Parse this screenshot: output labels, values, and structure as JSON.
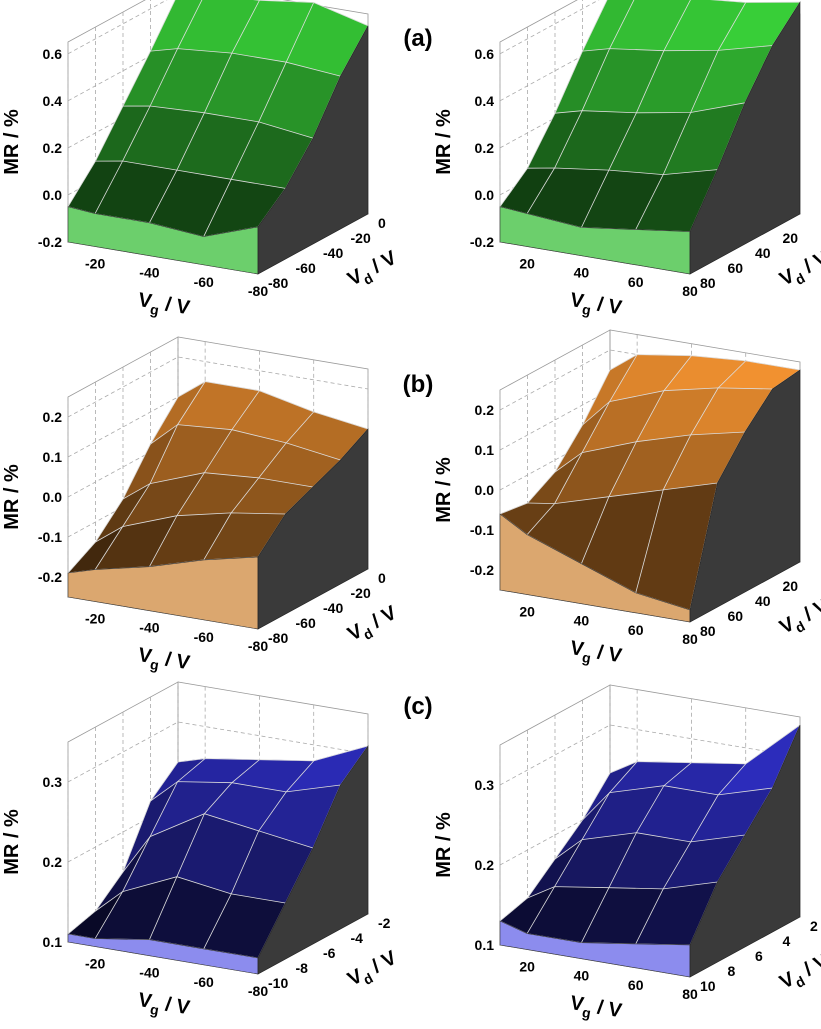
{
  "panel_labels": [
    "(a)",
    "(b)",
    "(c)"
  ],
  "chart_data": [
    {
      "type": "surface",
      "color": "#3ad63a",
      "front_color": "#6ccf6c",
      "zlabel": "MR / %",
      "xlabel": {
        "main": "V",
        "sub": "g",
        "unit": " / V"
      },
      "ylabel": {
        "main": "V",
        "sub": "d",
        "unit": " / V"
      },
      "x": [
        -10,
        -20,
        -40,
        -60,
        -80
      ],
      "y": [
        0,
        -20,
        -40,
        -60,
        -80
      ],
      "xlim": [
        -10,
        -80
      ],
      "ylim": [
        0,
        -80
      ],
      "zlim": [
        -0.2,
        0.65
      ],
      "xticks": [
        -20,
        -40,
        -60,
        -80
      ],
      "yticks": [
        0,
        -20,
        -40,
        -60,
        -80
      ],
      "zticks": [
        -0.2,
        {
          "value": 0,
          "label": "0.0"
        },
        0.2,
        0.4,
        0.6
      ],
      "z": [
        [
          0.6,
          0.62,
          0.63,
          0.66,
          0.6
        ],
        [
          0.42,
          0.45,
          0.47,
          0.47,
          0.45
        ],
        [
          0.25,
          0.27,
          0.28,
          0.28,
          0.25
        ],
        [
          0.08,
          0.1,
          0.1,
          0.1,
          0.1
        ],
        [
          -0.05,
          -0.06,
          -0.06,
          -0.08,
          0.0
        ]
      ]
    },
    {
      "type": "surface",
      "color": "#3ad63a",
      "front_color": "#6ccf6c",
      "zlabel": "MR / %",
      "xlabel": {
        "main": "V",
        "sub": "g",
        "unit": " / V"
      },
      "ylabel": {
        "main": "V",
        "sub": "d",
        "unit": " / V"
      },
      "x": [
        10,
        20,
        40,
        60,
        80
      ],
      "y": [
        0,
        20,
        40,
        60,
        80
      ],
      "xlim": [
        10,
        80
      ],
      "ylim": [
        0,
        80
      ],
      "zlim": [
        -0.2,
        0.65
      ],
      "xticks": [
        20,
        40,
        60,
        80
      ],
      "yticks": [
        20,
        40,
        60,
        80
      ],
      "zticks": [
        -0.2,
        {
          "value": 0,
          "label": "0.0"
        },
        0.2,
        0.4,
        0.6
      ],
      "z": [
        [
          0.6,
          0.62,
          0.64,
          0.66,
          0.7
        ],
        [
          0.42,
          0.45,
          0.48,
          0.52,
          0.58
        ],
        [
          0.22,
          0.25,
          0.28,
          0.32,
          0.4
        ],
        [
          0.05,
          0.07,
          0.1,
          0.12,
          0.18
        ],
        [
          -0.05,
          -0.06,
          -0.08,
          -0.05,
          -0.02
        ]
      ]
    },
    {
      "type": "surface",
      "color": "#ff9a33",
      "front_color": "#dba76f",
      "zlabel": "MR / %",
      "xlabel": {
        "main": "V",
        "sub": "g",
        "unit": " / V"
      },
      "ylabel": {
        "main": "V",
        "sub": "d",
        "unit": " / V"
      },
      "x": [
        -10,
        -20,
        -40,
        -60,
        -80
      ],
      "y": [
        0,
        -20,
        -40,
        -60,
        -80
      ],
      "xlim": [
        -10,
        -80
      ],
      "ylim": [
        0,
        -80
      ],
      "zlim": [
        -0.25,
        0.25
      ],
      "xticks": [
        -20,
        -40,
        -60,
        -80
      ],
      "yticks": [
        0,
        -20,
        -40,
        -60,
        -80
      ],
      "zticks": [
        -0.2,
        -0.1,
        {
          "value": 0,
          "label": "0.0"
        },
        0.1,
        0.2
      ],
      "z": [
        [
          0.1,
          0.15,
          0.15,
          0.12,
          0.1
        ],
        [
          0.02,
          0.08,
          0.09,
          0.08,
          0.06
        ],
        [
          -0.08,
          -0.03,
          0.02,
          0.03,
          0.03
        ],
        [
          -0.15,
          -0.1,
          -0.05,
          -0.02,
          0.0
        ],
        [
          -0.19,
          -0.17,
          -0.14,
          -0.1,
          -0.07
        ]
      ]
    },
    {
      "type": "surface",
      "color": "#ff9a33",
      "front_color": "#dba76f",
      "zlabel": "MR / %",
      "xlabel": {
        "main": "V",
        "sub": "g",
        "unit": " / V"
      },
      "ylabel": {
        "main": "V",
        "sub": "d",
        "unit": " / V"
      },
      "x": [
        10,
        20,
        40,
        60,
        80
      ],
      "y": [
        0,
        20,
        40,
        60,
        80
      ],
      "xlim": [
        10,
        80
      ],
      "ylim": [
        0,
        80
      ],
      "zlim": [
        -0.25,
        0.25
      ],
      "xticks": [
        20,
        40,
        60,
        80
      ],
      "yticks": [
        20,
        40,
        60,
        80
      ],
      "zticks": [
        -0.2,
        -0.1,
        {
          "value": 0,
          "label": "0.0"
        },
        0.1,
        0.2
      ],
      "z": [
        [
          0.15,
          0.2,
          0.22,
          0.23,
          0.23
        ],
        [
          0.05,
          0.12,
          0.17,
          0.2,
          0.22
        ],
        [
          -0.03,
          0.03,
          0.08,
          0.12,
          0.15
        ],
        [
          -0.07,
          -0.06,
          -0.02,
          0.02,
          0.06
        ],
        [
          -0.06,
          -0.1,
          -0.15,
          -0.2,
          -0.22
        ]
      ]
    },
    {
      "type": "surface",
      "color": "#3838f0",
      "front_color": "#8c8cee",
      "zlabel": "MR / %",
      "xlabel": {
        "main": "V",
        "sub": "g",
        "unit": " / V"
      },
      "ylabel": {
        "main": "V",
        "sub": "d",
        "unit": " / V"
      },
      "x": [
        -10,
        -20,
        -40,
        -60,
        -80
      ],
      "y": [
        -2,
        -4,
        -6,
        -8,
        -10
      ],
      "xlim": [
        -10,
        -80
      ],
      "ylim": [
        -2,
        -10
      ],
      "zlim": [
        0.1,
        0.35
      ],
      "xticks": [
        -20,
        -40,
        -60,
        -80
      ],
      "yticks": [
        -2,
        -4,
        -6,
        -8,
        -10
      ],
      "zticks": [
        0.1,
        0.2,
        0.3
      ],
      "z": [
        [
          0.25,
          0.26,
          0.27,
          0.28,
          0.31
        ],
        [
          0.22,
          0.25,
          0.26,
          0.26,
          0.28
        ],
        [
          0.15,
          0.2,
          0.24,
          0.23,
          0.22
        ],
        [
          0.12,
          0.15,
          0.18,
          0.17,
          0.17
        ],
        [
          0.11,
          0.11,
          0.12,
          0.12,
          0.12
        ]
      ]
    },
    {
      "type": "surface",
      "color": "#3838f0",
      "front_color": "#8c8cee",
      "zlabel": "MR / %",
      "xlabel": {
        "main": "V",
        "sub": "g",
        "unit": " / V"
      },
      "ylabel": {
        "main": "V",
        "sub": "d",
        "unit": " / V"
      },
      "x": [
        10,
        20,
        40,
        60,
        80
      ],
      "y": [
        2,
        4,
        6,
        8,
        10
      ],
      "xlim": [
        10,
        80
      ],
      "ylim": [
        2,
        10
      ],
      "zlim": [
        0.1,
        0.35
      ],
      "xticks": [
        20,
        40,
        60,
        80
      ],
      "yticks": [
        2,
        4,
        6,
        8,
        10
      ],
      "zticks": [
        0.1,
        0.2,
        0.3
      ],
      "z": [
        [
          0.24,
          0.26,
          0.27,
          0.28,
          0.34
        ],
        [
          0.2,
          0.24,
          0.26,
          0.26,
          0.28
        ],
        [
          0.17,
          0.2,
          0.22,
          0.22,
          0.24
        ],
        [
          0.14,
          0.16,
          0.17,
          0.18,
          0.2
        ],
        [
          0.13,
          0.12,
          0.12,
          0.13,
          0.14
        ]
      ]
    }
  ]
}
